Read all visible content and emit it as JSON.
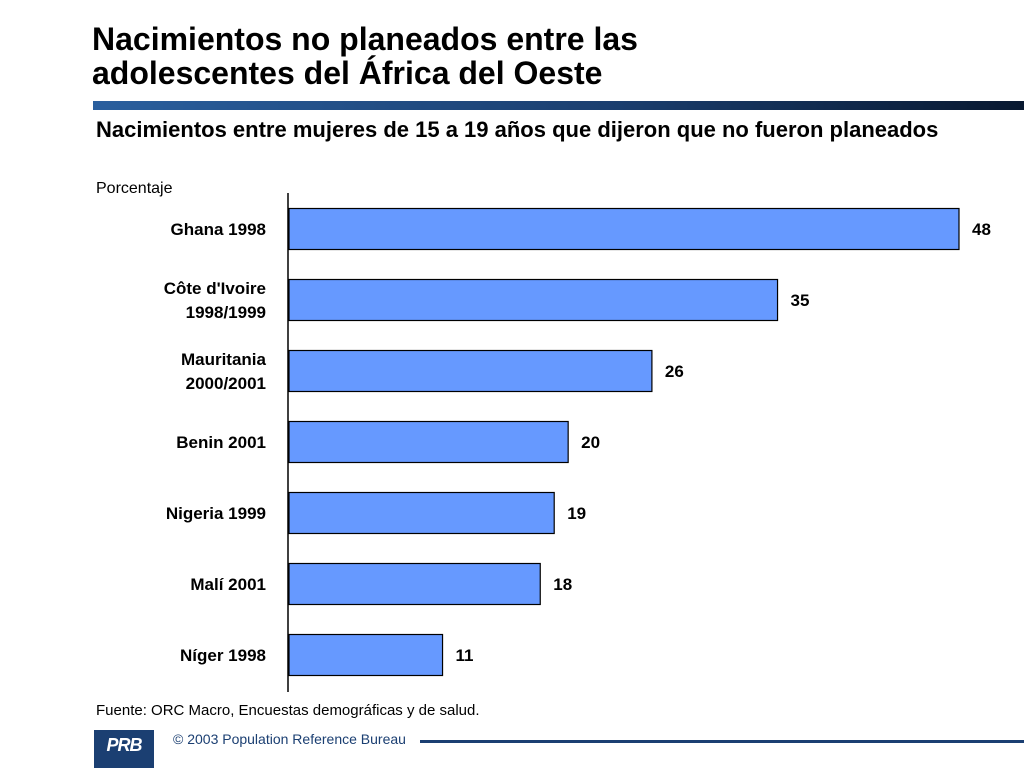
{
  "title_lines": [
    "Nacimientos no planeados entre las",
    "adolescentes del África del Oeste"
  ],
  "chart_data": {
    "type": "bar",
    "orientation": "horizontal",
    "title": "Nacimientos entre mujeres de 15 a 19 años que dijeron que no fueron planeados",
    "ylabel": "Porcentaje",
    "categories": [
      [
        "Ghana 1998"
      ],
      [
        "Côte d'Ivoire",
        "1998/1999"
      ],
      [
        "Mauritania",
        "2000/2001"
      ],
      [
        "Benin 2001"
      ],
      [
        "Nigeria 1999"
      ],
      [
        "Malí 2001"
      ],
      [
        "Níger 1998"
      ]
    ],
    "values": [
      48,
      35,
      26,
      20,
      19,
      18,
      11
    ],
    "xlim": [
      0,
      48
    ],
    "grid": false,
    "bar_color": "#6699ff",
    "data_labels": true
  },
  "source": "Fuente: ORC Macro, Encuestas demográficas y de salud.",
  "footer": {
    "logo": "PRB",
    "copyright": "© 2003 Population Reference Bureau"
  },
  "colors": {
    "brand_navy": "#1b3f72",
    "bar": "#6699ff"
  }
}
